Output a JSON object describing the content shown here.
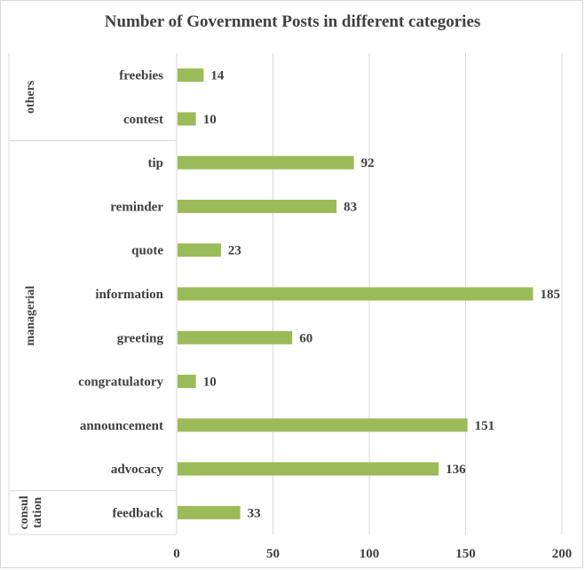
{
  "chart_data": {
    "type": "bar",
    "orientation": "horizontal",
    "title": "Number of Government Posts in different categories",
    "xlabel": "",
    "ylabel": "",
    "xlim": [
      0,
      200
    ],
    "xticks": [
      "0",
      "50",
      "100",
      "150",
      "200"
    ],
    "grid": "vertical",
    "bar_color": "#9bbb59",
    "groups": [
      {
        "name": "others",
        "categories": [
          "freebies",
          "contest"
        ]
      },
      {
        "name": "managerial",
        "categories": [
          "tip",
          "reminder",
          "quote",
          "information",
          "greeting",
          "congratulatory",
          "announcement",
          "advocacy"
        ]
      },
      {
        "name": "consultation",
        "display": [
          "consul",
          "tation"
        ],
        "categories": [
          "feedback"
        ]
      }
    ],
    "categories": [
      "freebies",
      "contest",
      "tip",
      "reminder",
      "quote",
      "information",
      "greeting",
      "congratulatory",
      "announcement",
      "advocacy",
      "feedback"
    ],
    "values": [
      14,
      10,
      92,
      83,
      23,
      185,
      60,
      10,
      151,
      136,
      33
    ]
  }
}
